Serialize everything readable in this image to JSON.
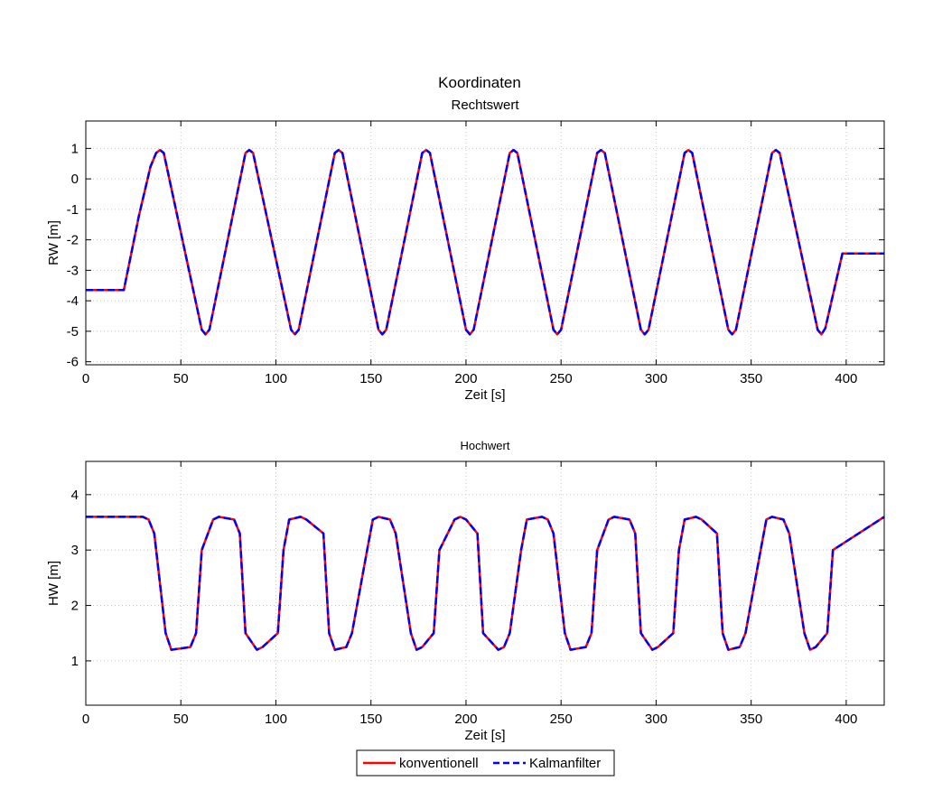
{
  "figure": {
    "title": "Koordinaten"
  },
  "chart_data": [
    {
      "type": "line",
      "title": "Rechtswert",
      "xlabel": "Zeit [s]",
      "ylabel": "RW [m]",
      "xlim": [
        0,
        420
      ],
      "ylim": [
        -6.1,
        1.9
      ],
      "xticks": [
        0,
        50,
        100,
        150,
        200,
        250,
        300,
        350,
        400
      ],
      "yticks": [
        -6,
        -5,
        -4,
        -3,
        -2,
        -1,
        0,
        1
      ],
      "grid": true,
      "series": [
        {
          "name": "konventionell",
          "color": "#ff0000",
          "style": "solid",
          "x": [
            0,
            20,
            28,
            34,
            37,
            39,
            41,
            61,
            63,
            65,
            84,
            86,
            88,
            108,
            110,
            112,
            131,
            133,
            135,
            154,
            156,
            158,
            177,
            179,
            181,
            200,
            202,
            204,
            223,
            225,
            227,
            246,
            248,
            250,
            269,
            271,
            273,
            292,
            294,
            296,
            315,
            317,
            319,
            338,
            340,
            342,
            361,
            363,
            365,
            385,
            387,
            389,
            398,
            400,
            420
          ],
          "y": [
            -3.65,
            -3.65,
            -1.2,
            0.4,
            0.85,
            0.95,
            0.85,
            -4.95,
            -5.1,
            -4.95,
            0.85,
            0.95,
            0.85,
            -4.95,
            -5.1,
            -4.95,
            0.85,
            0.95,
            0.85,
            -4.95,
            -5.1,
            -4.95,
            0.85,
            0.95,
            0.85,
            -4.95,
            -5.1,
            -4.95,
            0.85,
            0.95,
            0.85,
            -4.95,
            -5.1,
            -4.95,
            0.85,
            0.95,
            0.85,
            -4.95,
            -5.1,
            -4.95,
            0.85,
            0.95,
            0.85,
            -4.95,
            -5.1,
            -4.95,
            0.85,
            0.95,
            0.85,
            -4.95,
            -5.1,
            -4.9,
            -2.45,
            -2.45,
            -2.45
          ]
        },
        {
          "name": "Kalmanfilter",
          "color": "#0000ff",
          "style": "dashed",
          "x": [
            0,
            20,
            28,
            34,
            37,
            39,
            41,
            61,
            63,
            65,
            84,
            86,
            88,
            108,
            110,
            112,
            131,
            133,
            135,
            154,
            156,
            158,
            177,
            179,
            181,
            200,
            202,
            204,
            223,
            225,
            227,
            246,
            248,
            250,
            269,
            271,
            273,
            292,
            294,
            296,
            315,
            317,
            319,
            338,
            340,
            342,
            361,
            363,
            365,
            385,
            387,
            389,
            398,
            400,
            420
          ],
          "y": [
            -3.65,
            -3.65,
            -1.2,
            0.4,
            0.85,
            0.95,
            0.85,
            -4.95,
            -5.1,
            -4.95,
            0.85,
            0.95,
            0.85,
            -4.95,
            -5.1,
            -4.95,
            0.85,
            0.95,
            0.85,
            -4.95,
            -5.1,
            -4.95,
            0.85,
            0.95,
            0.85,
            -4.95,
            -5.1,
            -4.95,
            0.85,
            0.95,
            0.85,
            -4.95,
            -5.1,
            -4.95,
            0.85,
            0.95,
            0.85,
            -4.95,
            -5.1,
            -4.95,
            0.85,
            0.95,
            0.85,
            -4.95,
            -5.1,
            -4.95,
            0.85,
            0.95,
            0.85,
            -4.95,
            -5.1,
            -4.9,
            -2.45,
            -2.45,
            -2.45
          ]
        }
      ]
    },
    {
      "type": "line",
      "title": "Hochwert",
      "xlabel": "Zeit [s]",
      "ylabel": "HW [m]",
      "xlim": [
        0,
        420
      ],
      "ylim": [
        0.2,
        4.6
      ],
      "xticks": [
        0,
        50,
        100,
        150,
        200,
        250,
        300,
        350,
        400
      ],
      "yticks": [
        1,
        2,
        3,
        4
      ],
      "grid": true,
      "series": [
        {
          "name": "konventionell",
          "color": "#ff0000",
          "style": "solid",
          "x": [
            0,
            30,
            33,
            36,
            42,
            45,
            55,
            58,
            61,
            67,
            70,
            78,
            81,
            84,
            90,
            93,
            101,
            104,
            107,
            113,
            116,
            125,
            128,
            131,
            137,
            140,
            148,
            151,
            154,
            160,
            163,
            171,
            174,
            177,
            183,
            186,
            194,
            197,
            200,
            206,
            209,
            217,
            220,
            223,
            229,
            232,
            240,
            243,
            246,
            252,
            255,
            263,
            266,
            269,
            275,
            278,
            286,
            289,
            292,
            298,
            301,
            309,
            312,
            315,
            321,
            324,
            332,
            335,
            338,
            344,
            347,
            355,
            358,
            361,
            367,
            370,
            378,
            381,
            384,
            390,
            393,
            420
          ],
          "y": [
            3.6,
            3.6,
            3.55,
            3.3,
            1.5,
            1.2,
            1.25,
            1.5,
            3.0,
            3.55,
            3.6,
            3.55,
            3.3,
            1.5,
            1.2,
            1.25,
            1.5,
            3.0,
            3.55,
            3.6,
            3.55,
            3.3,
            1.5,
            1.2,
            1.25,
            1.5,
            3.0,
            3.55,
            3.6,
            3.55,
            3.3,
            1.5,
            1.2,
            1.25,
            1.5,
            3.0,
            3.55,
            3.6,
            3.55,
            3.3,
            1.5,
            1.2,
            1.25,
            1.5,
            3.0,
            3.55,
            3.6,
            3.55,
            3.3,
            1.5,
            1.2,
            1.25,
            1.5,
            3.0,
            3.55,
            3.6,
            3.55,
            3.3,
            1.5,
            1.2,
            1.25,
            1.5,
            3.0,
            3.55,
            3.6,
            3.55,
            3.3,
            1.5,
            1.2,
            1.25,
            1.5,
            3.0,
            3.55,
            3.6,
            3.55,
            3.3,
            1.5,
            1.2,
            1.25,
            1.5,
            3.0,
            3.6
          ],
          "note_pattern": "period ~46 s"
        },
        {
          "name": "Kalmanfilter",
          "color": "#0000ff",
          "style": "dashed",
          "x": [
            0,
            30,
            33,
            36,
            42,
            45,
            55,
            58,
            61,
            67,
            70,
            78,
            81,
            84,
            90,
            93,
            101,
            104,
            107,
            113,
            116,
            125,
            128,
            131,
            137,
            140,
            148,
            151,
            154,
            160,
            163,
            171,
            174,
            177,
            183,
            186,
            194,
            197,
            200,
            206,
            209,
            217,
            220,
            223,
            229,
            232,
            240,
            243,
            246,
            252,
            255,
            263,
            266,
            269,
            275,
            278,
            286,
            289,
            292,
            298,
            301,
            309,
            312,
            315,
            321,
            324,
            332,
            335,
            338,
            344,
            347,
            355,
            358,
            361,
            367,
            370,
            378,
            381,
            384,
            390,
            393,
            420
          ],
          "y": [
            3.6,
            3.6,
            3.55,
            3.3,
            1.5,
            1.2,
            1.25,
            1.5,
            3.0,
            3.55,
            3.6,
            3.55,
            3.3,
            1.5,
            1.2,
            1.25,
            1.5,
            3.0,
            3.55,
            3.6,
            3.55,
            3.3,
            1.5,
            1.2,
            1.25,
            1.5,
            3.0,
            3.55,
            3.6,
            3.55,
            3.3,
            1.5,
            1.2,
            1.25,
            1.5,
            3.0,
            3.55,
            3.6,
            3.55,
            3.3,
            1.5,
            1.2,
            1.25,
            1.5,
            3.0,
            3.55,
            3.6,
            3.55,
            3.3,
            1.5,
            1.2,
            1.25,
            1.5,
            3.0,
            3.55,
            3.6,
            3.55,
            3.3,
            1.5,
            1.2,
            1.25,
            1.5,
            3.0,
            3.55,
            3.6,
            3.55,
            3.3,
            1.5,
            1.2,
            1.25,
            1.5,
            3.0,
            3.55,
            3.6,
            3.55,
            3.3,
            1.5,
            1.2,
            1.25,
            1.5,
            3.0,
            3.6
          ]
        }
      ]
    }
  ],
  "legend": {
    "position": "bottom",
    "entries": [
      {
        "label": "konventionell",
        "color": "#ff0000",
        "style": "solid"
      },
      {
        "label": "Kalmanfilter",
        "color": "#0000ff",
        "style": "dashed"
      }
    ]
  }
}
